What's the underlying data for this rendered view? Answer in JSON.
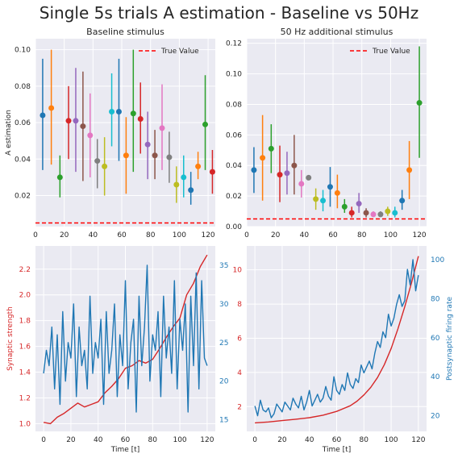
{
  "figure": {
    "title": "Single 5s trials A estimation - Baseline vs 50Hz"
  },
  "chart_data": [
    {
      "type": "scatter",
      "title": "Baseline stimulus",
      "xlabel": "",
      "ylabel": "A estimation",
      "xlim": [
        0,
        125
      ],
      "ylim": [
        0.003,
        0.106
      ],
      "xticks": [
        0,
        20,
        40,
        60,
        80,
        100,
        120
      ],
      "yticks": [
        0.02,
        0.04,
        0.06,
        0.08,
        0.1
      ],
      "ytick_labels": [
        "0.02",
        "0.04",
        "0.06",
        "0.08",
        "0.10"
      ],
      "grid": true,
      "legend": {
        "position": "top-right",
        "entries": [
          "True Value"
        ]
      },
      "true_value": 0.005,
      "palette": [
        "#1f77b4",
        "#ff7f0e",
        "#2ca02c",
        "#d62728",
        "#9467bd",
        "#8c564b",
        "#e377c2",
        "#7f7f7f",
        "#bcbd22",
        "#17becf"
      ],
      "points": [
        {
          "x": 5,
          "y": 0.064,
          "lo": 0.034,
          "hi": 0.095
        },
        {
          "x": 11,
          "y": 0.068,
          "lo": 0.037,
          "hi": 0.1
        },
        {
          "x": 17,
          "y": 0.03,
          "lo": 0.019,
          "hi": 0.042
        },
        {
          "x": 23,
          "y": 0.061,
          "lo": 0.04,
          "hi": 0.08
        },
        {
          "x": 28,
          "y": 0.061,
          "lo": 0.033,
          "hi": 0.09
        },
        {
          "x": 33,
          "y": 0.058,
          "lo": 0.028,
          "hi": 0.088
        },
        {
          "x": 38,
          "y": 0.053,
          "lo": 0.03,
          "hi": 0.076
        },
        {
          "x": 43,
          "y": 0.039,
          "lo": 0.024,
          "hi": 0.051
        },
        {
          "x": 48,
          "y": 0.036,
          "lo": 0.02,
          "hi": 0.052
        },
        {
          "x": 53,
          "y": 0.066,
          "lo": 0.047,
          "hi": 0.087
        },
        {
          "x": 58,
          "y": 0.066,
          "lo": 0.039,
          "hi": 0.095
        },
        {
          "x": 63,
          "y": 0.042,
          "lo": 0.021,
          "hi": 0.063
        },
        {
          "x": 68,
          "y": 0.065,
          "lo": 0.033,
          "hi": 0.1
        },
        {
          "x": 73,
          "y": 0.062,
          "lo": 0.043,
          "hi": 0.082
        },
        {
          "x": 78,
          "y": 0.048,
          "lo": 0.029,
          "hi": 0.066
        },
        {
          "x": 83,
          "y": 0.042,
          "lo": 0.029,
          "hi": 0.056
        },
        {
          "x": 88,
          "y": 0.057,
          "lo": 0.034,
          "hi": 0.081
        },
        {
          "x": 93,
          "y": 0.041,
          "lo": 0.027,
          "hi": 0.055
        },
        {
          "x": 98,
          "y": 0.026,
          "lo": 0.016,
          "hi": 0.036
        },
        {
          "x": 103,
          "y": 0.03,
          "lo": 0.019,
          "hi": 0.042
        },
        {
          "x": 108,
          "y": 0.023,
          "lo": 0.015,
          "hi": 0.033
        },
        {
          "x": 113,
          "y": 0.036,
          "lo": 0.029,
          "hi": 0.044
        },
        {
          "x": 118,
          "y": 0.059,
          "lo": 0.034,
          "hi": 0.086
        },
        {
          "x": 123,
          "y": 0.033,
          "lo": 0.021,
          "hi": 0.045
        }
      ]
    },
    {
      "type": "scatter",
      "title": "50 Hz additional stimulus",
      "xlabel": "",
      "ylabel": "",
      "xlim": [
        0,
        125
      ],
      "ylim": [
        0.0,
        0.123
      ],
      "xticks": [
        0,
        20,
        40,
        60,
        80,
        100,
        120
      ],
      "yticks": [
        0.0,
        0.02,
        0.04,
        0.06,
        0.08,
        0.1,
        0.12
      ],
      "ytick_labels": [
        "0.00",
        "0.02",
        "0.04",
        "0.06",
        "0.08",
        "0.10",
        "0.12"
      ],
      "grid": true,
      "legend": {
        "position": "top-right",
        "entries": [
          "True Value"
        ]
      },
      "true_value": 0.005,
      "palette": [
        "#1f77b4",
        "#ff7f0e",
        "#2ca02c",
        "#d62728",
        "#9467bd",
        "#8c564b",
        "#e377c2",
        "#7f7f7f",
        "#bcbd22",
        "#17becf"
      ],
      "points": [
        {
          "x": 5,
          "y": 0.037,
          "lo": 0.022,
          "hi": 0.052
        },
        {
          "x": 11,
          "y": 0.045,
          "lo": 0.017,
          "hi": 0.073
        },
        {
          "x": 17,
          "y": 0.051,
          "lo": 0.035,
          "hi": 0.067
        },
        {
          "x": 23,
          "y": 0.034,
          "lo": 0.016,
          "hi": 0.053
        },
        {
          "x": 28,
          "y": 0.035,
          "lo": 0.021,
          "hi": 0.049
        },
        {
          "x": 33,
          "y": 0.04,
          "lo": 0.021,
          "hi": 0.06
        },
        {
          "x": 38,
          "y": 0.028,
          "lo": 0.019,
          "hi": 0.037
        },
        {
          "x": 43,
          "y": 0.032,
          "lo": 0.032,
          "hi": 0.032
        },
        {
          "x": 48,
          "y": 0.018,
          "lo": 0.011,
          "hi": 0.025
        },
        {
          "x": 53,
          "y": 0.017,
          "lo": 0.01,
          "hi": 0.024
        },
        {
          "x": 58,
          "y": 0.026,
          "lo": 0.013,
          "hi": 0.039
        },
        {
          "x": 63,
          "y": 0.022,
          "lo": 0.012,
          "hi": 0.034
        },
        {
          "x": 68,
          "y": 0.013,
          "lo": 0.009,
          "hi": 0.018
        },
        {
          "x": 73,
          "y": 0.009,
          "lo": 0.006,
          "hi": 0.013
        },
        {
          "x": 78,
          "y": 0.015,
          "lo": 0.009,
          "hi": 0.022
        },
        {
          "x": 83,
          "y": 0.009,
          "lo": 0.006,
          "hi": 0.012
        },
        {
          "x": 88,
          "y": 0.008,
          "lo": 0.007,
          "hi": 0.01
        },
        {
          "x": 93,
          "y": 0.008,
          "lo": 0.007,
          "hi": 0.01
        },
        {
          "x": 98,
          "y": 0.01,
          "lo": 0.007,
          "hi": 0.013
        },
        {
          "x": 103,
          "y": 0.009,
          "lo": 0.006,
          "hi": 0.013
        },
        {
          "x": 108,
          "y": 0.017,
          "lo": 0.011,
          "hi": 0.024
        },
        {
          "x": 113,
          "y": 0.037,
          "lo": 0.018,
          "hi": 0.056
        },
        {
          "x": 120,
          "y": 0.081,
          "lo": 0.045,
          "hi": 0.118
        }
      ]
    },
    {
      "type": "line",
      "title": "",
      "xlabel": "Time [t]",
      "ylabel": "Synaptic strength",
      "ylabel_right": "",
      "xlim": [
        -6,
        126
      ],
      "ylim": [
        0.94,
        2.38
      ],
      "ylim_right": [
        13.5,
        37.5
      ],
      "xticks": [
        0,
        20,
        40,
        60,
        80,
        100,
        120
      ],
      "yticks": [
        1.0,
        1.2,
        1.4,
        1.6,
        1.8,
        2.0,
        2.2
      ],
      "ytick_labels": [
        "1.0",
        "1.2",
        "1.4",
        "1.6",
        "1.8",
        "2.0",
        "2.2"
      ],
      "yticks_right": [
        15,
        20,
        25,
        30,
        35
      ],
      "grid": true,
      "series": [
        {
          "axis": "left",
          "color": "#d62728",
          "x": [
            0,
            5,
            10,
            15,
            20,
            25,
            30,
            35,
            40,
            45,
            50,
            55,
            60,
            65,
            70,
            75,
            80,
            85,
            90,
            95,
            100,
            105,
            110,
            115,
            120
          ],
          "y": [
            1.01,
            1.0,
            1.05,
            1.08,
            1.12,
            1.16,
            1.13,
            1.15,
            1.17,
            1.24,
            1.29,
            1.35,
            1.43,
            1.45,
            1.49,
            1.47,
            1.5,
            1.58,
            1.67,
            1.75,
            1.82,
            2.0,
            2.09,
            2.22,
            2.31
          ]
        },
        {
          "axis": "right",
          "color": "#1f77b4",
          "x": [
            0,
            2,
            4,
            6,
            8,
            10,
            12,
            14,
            16,
            18,
            20,
            22,
            24,
            26,
            28,
            30,
            32,
            34,
            36,
            38,
            40,
            42,
            44,
            46,
            48,
            50,
            52,
            54,
            56,
            58,
            60,
            62,
            64,
            66,
            68,
            70,
            72,
            74,
            76,
            78,
            80,
            82,
            84,
            86,
            88,
            90,
            92,
            94,
            96,
            98,
            100,
            102,
            104,
            106,
            108,
            110,
            112,
            114,
            116,
            118,
            120
          ],
          "y": [
            21,
            24,
            22,
            27,
            19,
            26,
            17,
            29,
            20,
            25,
            23,
            30,
            18,
            27,
            22,
            24,
            19,
            31,
            21,
            25,
            23,
            28,
            17,
            29,
            21,
            24,
            30,
            18,
            26,
            22,
            33,
            19,
            25,
            28,
            16,
            31,
            22,
            27,
            35,
            20,
            26,
            24,
            29,
            18,
            31,
            23,
            27,
            21,
            33,
            19,
            28,
            24,
            30,
            16,
            31,
            22,
            34,
            19,
            33,
            23,
            22
          ]
        }
      ]
    },
    {
      "type": "line",
      "title": "",
      "xlabel": "Time [t]",
      "ylabel": "",
      "ylabel_right": "Postsynaptic firing rate",
      "xlim": [
        -6,
        126
      ],
      "ylim": [
        0.55,
        11.4
      ],
      "ylim_right": [
        12,
        107
      ],
      "xticks": [
        0,
        20,
        40,
        60,
        80,
        100,
        120
      ],
      "yticks": [
        2,
        4,
        6,
        8,
        10
      ],
      "ytick_labels": [
        "2",
        "4",
        "6",
        "8",
        "10"
      ],
      "yticks_right": [
        20,
        40,
        60,
        80,
        100
      ],
      "grid": true,
      "series": [
        {
          "axis": "left",
          "color": "#d62728",
          "x": [
            0,
            10,
            20,
            30,
            40,
            50,
            60,
            70,
            75,
            80,
            85,
            90,
            95,
            100,
            105,
            110,
            115,
            120
          ],
          "y": [
            1.05,
            1.1,
            1.18,
            1.26,
            1.35,
            1.5,
            1.72,
            2.05,
            2.32,
            2.68,
            3.12,
            3.7,
            4.45,
            5.4,
            6.55,
            7.85,
            9.25,
            10.8
          ]
        },
        {
          "axis": "right",
          "color": "#1f77b4",
          "x": [
            0,
            2,
            4,
            6,
            8,
            10,
            12,
            14,
            16,
            18,
            20,
            22,
            24,
            26,
            28,
            30,
            32,
            34,
            36,
            38,
            40,
            42,
            44,
            46,
            48,
            50,
            52,
            54,
            56,
            58,
            60,
            62,
            64,
            66,
            68,
            70,
            72,
            74,
            76,
            78,
            80,
            82,
            84,
            86,
            88,
            90,
            92,
            94,
            96,
            98,
            100,
            102,
            104,
            106,
            108,
            110,
            112,
            114,
            116,
            118,
            120
          ],
          "y": [
            25,
            20,
            28,
            23,
            22,
            24,
            19,
            21,
            26,
            24,
            22,
            27,
            25,
            23,
            29,
            26,
            24,
            30,
            23,
            27,
            33,
            25,
            28,
            31,
            27,
            29,
            35,
            30,
            28,
            40,
            33,
            31,
            36,
            33,
            42,
            36,
            34,
            39,
            37,
            46,
            42,
            45,
            48,
            44,
            52,
            58,
            55,
            63,
            60,
            72,
            66,
            70,
            77,
            82,
            76,
            79,
            95,
            87,
            100,
            84,
            92
          ]
        }
      ]
    }
  ]
}
